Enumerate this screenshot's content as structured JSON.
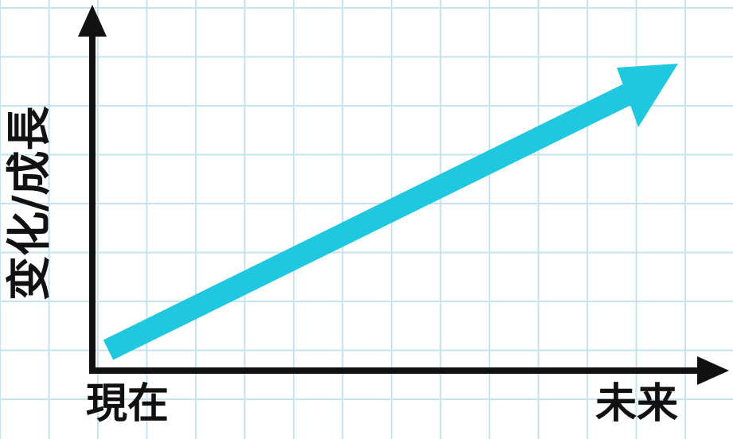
{
  "diagram": {
    "y_axis_label": "变化/成長",
    "x_axis_start_label": "現在",
    "x_axis_end_label": "未来"
  },
  "colors": {
    "grid": "#c6e3ef",
    "axis": "#111111",
    "trend_arrow": "#1fc8de",
    "background": "#ffffff"
  },
  "icons": {
    "trend": "arrow-up-right-icon",
    "x_axis": "arrow-right-icon",
    "y_axis": "arrow-up-icon"
  }
}
